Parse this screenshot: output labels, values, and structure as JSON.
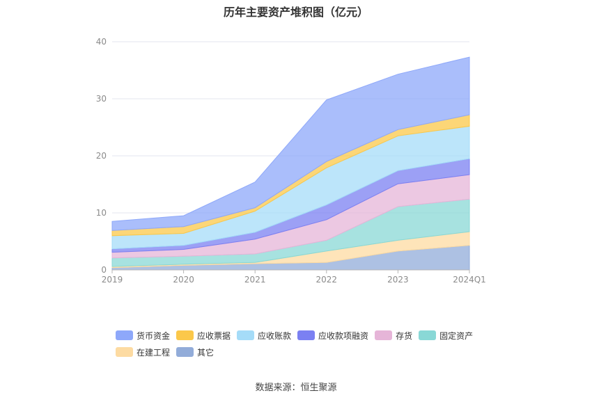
{
  "chart_data": {
    "type": "area",
    "stacked": true,
    "title": "历年主要资产堆积图（亿元）",
    "categories": [
      "2019",
      "2020",
      "2021",
      "2022",
      "2023",
      "2024Q1"
    ],
    "ylim": [
      0,
      40
    ],
    "yticks": [
      0,
      10,
      20,
      30,
      40
    ],
    "grid": true,
    "legend_position": "bottom",
    "series": [
      {
        "name": "货币资金",
        "color": "#8ea8fa",
        "values": [
          1.6,
          1.9,
          4.5,
          10.8,
          9.7,
          10.1
        ]
      },
      {
        "name": "应收票据",
        "color": "#fbc84a",
        "values": [
          0.9,
          1.2,
          0.6,
          1.1,
          1.1,
          2.0
        ]
      },
      {
        "name": "应收账款",
        "color": "#a5dcf8",
        "values": [
          2.3,
          2.1,
          3.7,
          6.5,
          6.1,
          5.7
        ]
      },
      {
        "name": "应收款项融资",
        "color": "#7b80f2",
        "values": [
          0.6,
          0.7,
          1.2,
          2.6,
          2.3,
          2.8
        ]
      },
      {
        "name": "存货",
        "color": "#e6b5d8",
        "values": [
          1.0,
          1.2,
          2.6,
          3.6,
          4.0,
          4.3
        ]
      },
      {
        "name": "固定资产",
        "color": "#89d8d6",
        "values": [
          1.5,
          1.4,
          1.5,
          1.9,
          5.9,
          5.7
        ]
      },
      {
        "name": "在建工程",
        "color": "#fddba2",
        "values": [
          0.2,
          0.2,
          0.2,
          2.0,
          1.9,
          2.4
        ]
      },
      {
        "name": "其它",
        "color": "#92acd9",
        "values": [
          0.4,
          0.8,
          1.1,
          1.3,
          3.3,
          4.3
        ]
      }
    ]
  },
  "source_note": "数据来源：恒生聚源"
}
